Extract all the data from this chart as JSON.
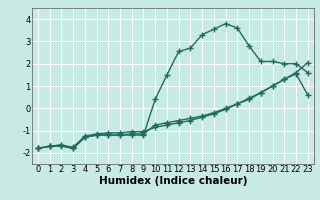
{
  "bg_color": "#c8eae4",
  "grid_color": "#ffffff",
  "line_color": "#1e6b60",
  "line_width": 1.0,
  "marker": "+",
  "marker_size": 4,
  "marker_lw": 1.0,
  "xlabel": "Humidex (Indice chaleur)",
  "xlabel_fontsize": 7.5,
  "tick_fontsize": 6.0,
  "ylim": [
    -2.5,
    4.5
  ],
  "xlim": [
    -0.5,
    23.5
  ],
  "yticks": [
    -2,
    -1,
    0,
    1,
    2,
    3,
    4
  ],
  "xticks": [
    0,
    1,
    2,
    3,
    4,
    5,
    6,
    7,
    8,
    9,
    10,
    11,
    12,
    13,
    14,
    15,
    16,
    17,
    18,
    19,
    20,
    21,
    22,
    23
  ],
  "line1_x": [
    0,
    1,
    2,
    3,
    4,
    5,
    6,
    7,
    8,
    9,
    10,
    11,
    12,
    13,
    14,
    15,
    16,
    17,
    18,
    19,
    20,
    21,
    22,
    23
  ],
  "line1_y": [
    -1.8,
    -1.7,
    -1.7,
    -1.8,
    -1.3,
    -1.2,
    -1.2,
    -1.2,
    -1.2,
    -1.2,
    0.4,
    1.5,
    2.55,
    2.7,
    3.3,
    3.55,
    3.8,
    3.6,
    2.8,
    2.1,
    2.1,
    2.0,
    2.0,
    1.6
  ],
  "line2_x": [
    0,
    1,
    2,
    3,
    4,
    5,
    6,
    7,
    8,
    9,
    10,
    11,
    12,
    13,
    14,
    15,
    16,
    17,
    18,
    19,
    20,
    21,
    22,
    23
  ],
  "line2_y": [
    -1.8,
    -1.7,
    -1.65,
    -1.8,
    -1.3,
    -1.2,
    -1.2,
    -1.2,
    -1.15,
    -1.15,
    -0.75,
    -0.65,
    -0.55,
    -0.45,
    -0.35,
    -0.2,
    -0.0,
    0.2,
    0.4,
    0.7,
    1.0,
    1.3,
    1.6,
    2.05
  ],
  "line3_x": [
    0,
    1,
    2,
    3,
    4,
    5,
    6,
    7,
    8,
    9,
    10,
    11,
    12,
    13,
    14,
    15,
    16,
    17,
    18,
    19,
    20,
    21,
    22,
    23
  ],
  "line3_y": [
    -1.8,
    -1.7,
    -1.65,
    -1.75,
    -1.25,
    -1.15,
    -1.1,
    -1.1,
    -1.05,
    -1.05,
    -0.85,
    -0.75,
    -0.65,
    -0.55,
    -0.4,
    -0.25,
    -0.05,
    0.2,
    0.45,
    0.7,
    1.0,
    1.3,
    1.55,
    0.6
  ]
}
